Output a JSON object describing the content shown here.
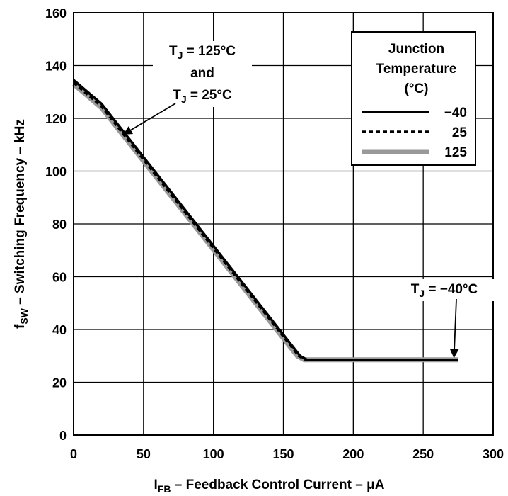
{
  "chart_data": {
    "type": "line",
    "xlabel": {
      "main": "I",
      "sub": "FB",
      "rest": " – Feedback Control Current – μA"
    },
    "ylabel": {
      "main": "f",
      "sub": "SW",
      "rest": " – Switching Frequency – kHz"
    },
    "xlim": [
      0,
      300
    ],
    "ylim": [
      0,
      160
    ],
    "x_ticks": [
      0,
      50,
      100,
      150,
      200,
      250,
      300
    ],
    "y_ticks": [
      0,
      20,
      40,
      60,
      80,
      100,
      120,
      140,
      160
    ],
    "grid": true,
    "legend": {
      "placement": "top-right",
      "title": [
        "Junction",
        "Temperature",
        "(°C)"
      ]
    },
    "series": [
      {
        "name": "125",
        "color": "#999999",
        "style": "solid-thick",
        "x": [
          0,
          20,
          160,
          165,
          275
        ],
        "y": [
          133,
          124,
          30,
          28.5,
          28.5
        ]
      },
      {
        "name": "25",
        "color": "#000000",
        "style": "dashed",
        "x": [
          0,
          20,
          161,
          166,
          275
        ],
        "y": [
          133.5,
          124.5,
          30,
          28.5,
          28.5
        ]
      },
      {
        "name": "−40",
        "color": "#000000",
        "style": "solid",
        "x": [
          0,
          20,
          162,
          167,
          275
        ],
        "y": [
          134.5,
          125.5,
          30,
          28.5,
          28.5
        ]
      }
    ],
    "annotations": [
      {
        "id": "tj-125-25",
        "lines": [
          [
            "T",
            "J",
            " = 125°C"
          ],
          [
            "",
            "",
            "and"
          ],
          [
            "T",
            "J",
            " = 25°C"
          ]
        ],
        "arrow_to": [
          36,
          114
        ]
      },
      {
        "id": "tj-minus40",
        "lines": [
          [
            "T",
            "J",
            " = −40°C"
          ]
        ],
        "arrow_to": [
          272,
          29.5
        ]
      }
    ]
  }
}
